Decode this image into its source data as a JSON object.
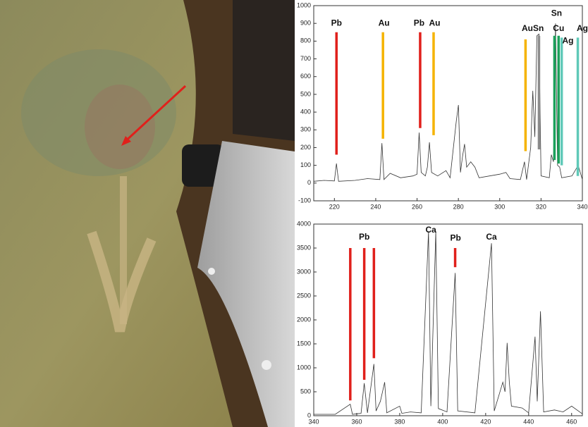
{
  "chart_data": [
    {
      "type": "line",
      "xlim": [
        210,
        340
      ],
      "ylim": [
        -100,
        1000
      ],
      "xticks": [
        220,
        240,
        260,
        280,
        300,
        320,
        340
      ],
      "yticks": [
        -100,
        0,
        100,
        200,
        300,
        400,
        500,
        600,
        700,
        800,
        900,
        1000
      ],
      "color": "#333333",
      "x": [
        210,
        215,
        220,
        221,
        222,
        230,
        236,
        242,
        243,
        244,
        247,
        252,
        258,
        260,
        261,
        262,
        264,
        265,
        266,
        267,
        270,
        274,
        276,
        279,
        280,
        281,
        282,
        283,
        284,
        286,
        288,
        290,
        300,
        303,
        305,
        310,
        312,
        313,
        315,
        316,
        317,
        318,
        319,
        320,
        324,
        325,
        326,
        327,
        328,
        329,
        330,
        335,
        338,
        340
      ],
      "values": [
        10,
        15,
        12,
        110,
        10,
        15,
        25,
        20,
        225,
        20,
        55,
        30,
        40,
        50,
        285,
        60,
        40,
        90,
        230,
        60,
        40,
        70,
        30,
        350,
        440,
        60,
        150,
        220,
        90,
        120,
        90,
        30,
        50,
        60,
        25,
        20,
        120,
        20,
        200,
        520,
        260,
        830,
        840,
        40,
        30,
        160,
        120,
        900,
        100,
        90,
        30,
        40,
        100,
        20
      ],
      "markers": [
        {
          "x": 221,
          "y": [
            160,
            850
          ],
          "color": "#e0201b"
        },
        {
          "x": 243.5,
          "y": [
            250,
            850
          ],
          "color": "#f5b300"
        },
        {
          "x": 261.5,
          "y": [
            310,
            850
          ],
          "color": "#e0201b"
        },
        {
          "x": 268,
          "y": [
            270,
            850
          ],
          "color": "#f5b300"
        },
        {
          "x": 312.5,
          "y": [
            180,
            810
          ],
          "color": "#f5b300"
        },
        {
          "x": 319,
          "y": [
            190,
            830
          ],
          "color": "#8c8c8c"
        },
        {
          "x": 326.5,
          "y": [
            130,
            830
          ],
          "color": "#1aa05a"
        },
        {
          "x": 328.5,
          "y": [
            110,
            830
          ],
          "color": "#1aa05a"
        },
        {
          "x": 330,
          "y": [
            100,
            820
          ],
          "color": "#5fc9b8"
        },
        {
          "x": 337.8,
          "y": [
            40,
            820
          ],
          "color": "#5fc9b8"
        }
      ],
      "labels": [
        {
          "text": "Pb",
          "x": 221,
          "y": 900
        },
        {
          "text": "Au",
          "x": 244,
          "y": 900
        },
        {
          "text": "Pb",
          "x": 261,
          "y": 900
        },
        {
          "text": "Au",
          "x": 268.5,
          "y": 900
        },
        {
          "text": "AuSn",
          "x": 316,
          "y": 870
        },
        {
          "text": "Sn",
          "x": 327.5,
          "y": 955
        },
        {
          "text": "Cu",
          "x": 328.5,
          "y": 870
        },
        {
          "text": "Ag",
          "x": 333,
          "y": 800
        },
        {
          "text": "Ag",
          "x": 340,
          "y": 870
        }
      ]
    },
    {
      "type": "line",
      "xlim": [
        340,
        465
      ],
      "ylim": [
        0,
        4000
      ],
      "xticks": [
        340,
        360,
        380,
        400,
        420,
        440,
        460
      ],
      "yticks": [
        0,
        500,
        1000,
        1500,
        2000,
        2500,
        3000,
        3500,
        4000
      ],
      "color": "#333333",
      "x": [
        340,
        350,
        357,
        358,
        362,
        363.5,
        365,
        368,
        369,
        371,
        373,
        374,
        380,
        381,
        385,
        390,
        393.4,
        394.5,
        396.8,
        398,
        402,
        405.8,
        407,
        415,
        422.7,
        424,
        428,
        429,
        430,
        431,
        432,
        437,
        440,
        443,
        444,
        445.5,
        447,
        452,
        456,
        460,
        465
      ],
      "values": [
        30,
        30,
        240,
        30,
        50,
        680,
        60,
        1080,
        100,
        300,
        700,
        60,
        200,
        50,
        80,
        60,
        3850,
        200,
        3850,
        150,
        80,
        2980,
        100,
        60,
        3600,
        100,
        700,
        500,
        1520,
        700,
        200,
        160,
        60,
        1650,
        300,
        2180,
        80,
        120,
        80,
        200,
        40
      ],
      "markers": [
        {
          "x": 357,
          "y": [
            320,
            3500
          ],
          "color": "#e0201b"
        },
        {
          "x": 363.5,
          "y": [
            750,
            3500
          ],
          "color": "#e0201b"
        },
        {
          "x": 368,
          "y": [
            1200,
            3500
          ],
          "color": "#e0201b"
        },
        {
          "x": 405.8,
          "y": [
            3100,
            3500
          ],
          "color": "#e0201b"
        }
      ],
      "labels": [
        {
          "text": "Pb",
          "x": 363.5,
          "y": 3720
        },
        {
          "text": "Ca",
          "x": 394.5,
          "y": 3870
        },
        {
          "text": "Pb",
          "x": 406,
          "y": 3700
        },
        {
          "text": "Ca",
          "x": 422.7,
          "y": 3720
        }
      ]
    }
  ]
}
